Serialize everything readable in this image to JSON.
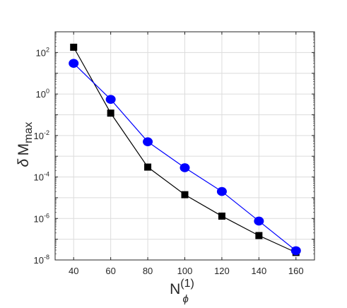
{
  "chart_data": {
    "type": "line",
    "xlabel": {
      "base": "N",
      "sub": "ϕ",
      "sup": "(1)"
    },
    "ylabel": {
      "prefix": "δ",
      "base": "M",
      "sub": "max"
    },
    "xlim": [
      30,
      170
    ],
    "ylim_log10": [
      -8,
      3
    ],
    "yscale": "log",
    "grid": true,
    "xticks": [
      {
        "value": 40,
        "label": "40"
      },
      {
        "value": 60,
        "label": "60"
      },
      {
        "value": 80,
        "label": "80"
      },
      {
        "value": 100,
        "label": "100"
      },
      {
        "value": 120,
        "label": "120"
      },
      {
        "value": 140,
        "label": "140"
      },
      {
        "value": 160,
        "label": "160"
      }
    ],
    "yticks": [
      {
        "exp": 2,
        "base": "10",
        "sup": "2"
      },
      {
        "exp": 0,
        "base": "10",
        "sup": "0"
      },
      {
        "exp": -2,
        "base": "10",
        "sup": "-2"
      },
      {
        "exp": -4,
        "base": "10",
        "sup": "-4"
      },
      {
        "exp": -6,
        "base": "10",
        "sup": "-6"
      },
      {
        "exp": -8,
        "base": "10",
        "sup": "-8"
      }
    ],
    "x": [
      40,
      60,
      80,
      100,
      120,
      140,
      160
    ],
    "series": [
      {
        "marker": "square",
        "color": "#000000",
        "values": [
          180,
          0.12,
          0.0003,
          1.4e-05,
          1.3e-06,
          1.5e-07,
          2.3e-08
        ]
      },
      {
        "marker": "circle",
        "color": "#0000ff",
        "values": [
          30,
          0.55,
          0.005,
          0.00028,
          2e-05,
          7.5e-07,
          2.8e-08
        ]
      }
    ]
  }
}
